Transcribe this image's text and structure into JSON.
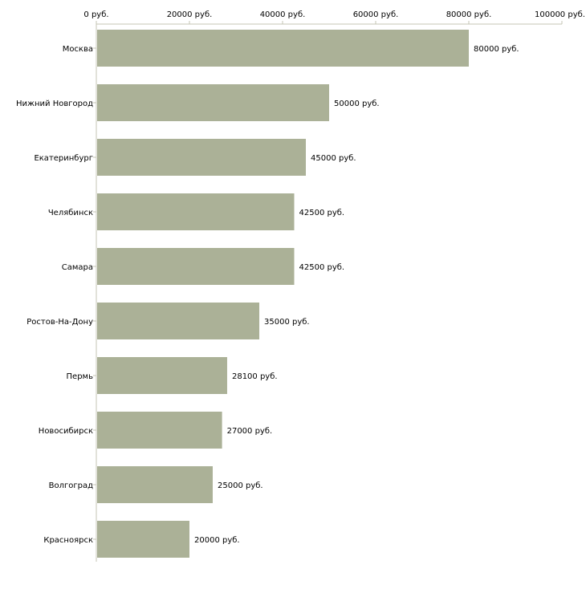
{
  "chart_data": {
    "type": "bar",
    "orientation": "horizontal",
    "title": "",
    "xlabel": "",
    "ylabel": "",
    "xlim": [
      0,
      100000
    ],
    "x_ticks": [
      "0 руб.",
      "20000 руб.",
      "40000 руб.",
      "60000 руб.",
      "80000 руб.",
      "100000 руб."
    ],
    "x_tick_values": [
      0,
      20000,
      40000,
      60000,
      80000,
      100000
    ],
    "categories": [
      "Москва",
      "Нижний Новгород",
      "Екатеринбург",
      "Челябинск",
      "Самара",
      "Ростов-На-Дону",
      "Пермь",
      "Новосибирск",
      "Волгоград",
      "Красноярск"
    ],
    "values": [
      80000,
      50000,
      45000,
      42500,
      42500,
      35000,
      28100,
      27000,
      25000,
      20000
    ],
    "data_labels": [
      "80000 руб.",
      "50000 руб.",
      "45000 руб.",
      "42500 руб.",
      "42500 руб.",
      "35000 руб.",
      "28100 руб.",
      "27000 руб.",
      "25000 руб.",
      "20000 руб."
    ],
    "grid": false,
    "legend": "none",
    "colors": {
      "bar": "#abb197",
      "axis": "#c4c6b4"
    }
  }
}
